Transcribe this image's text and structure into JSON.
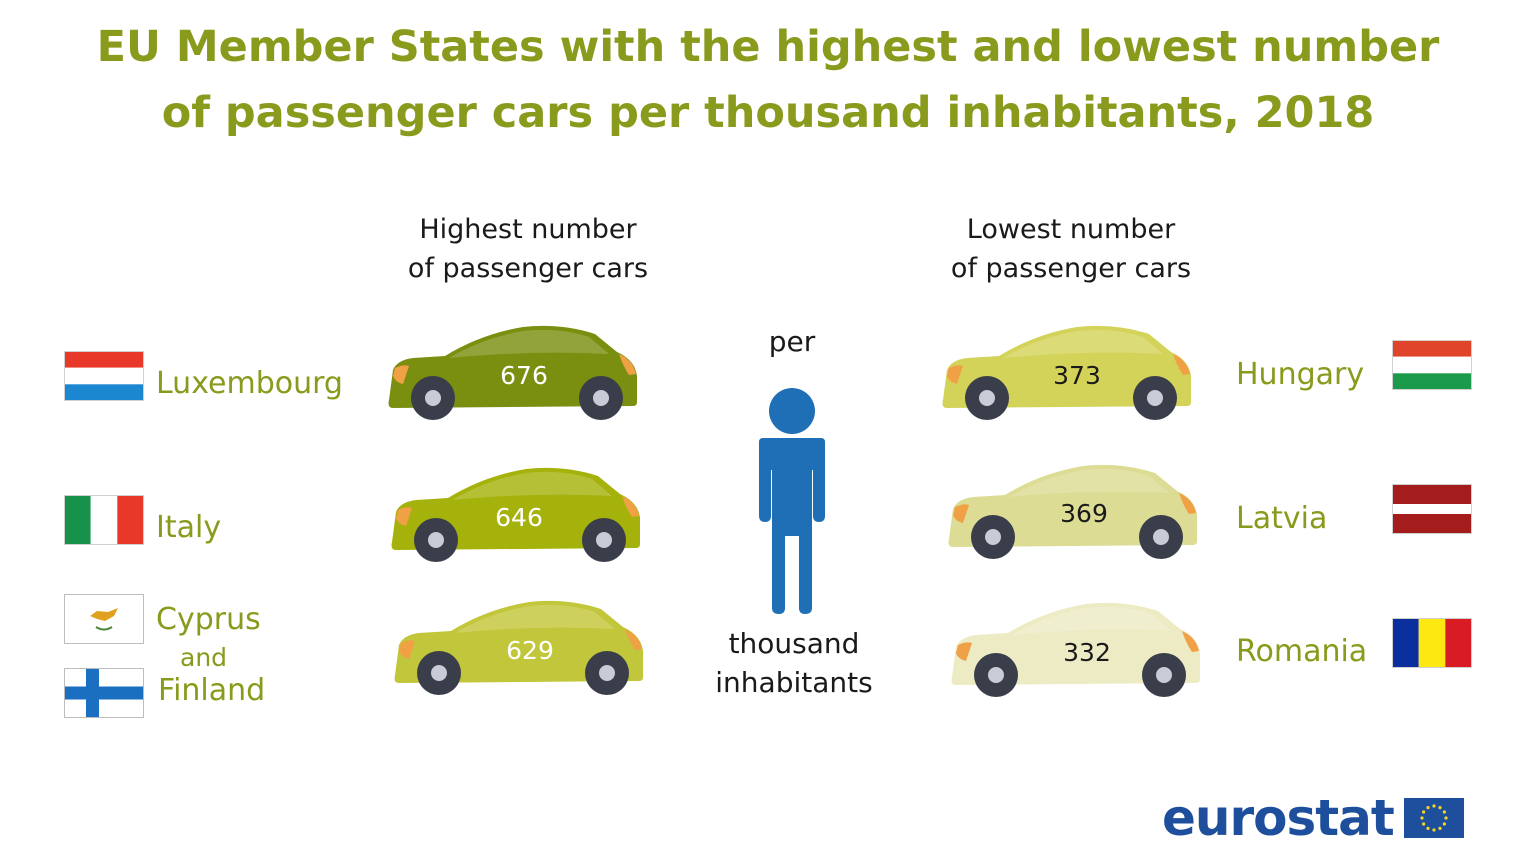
{
  "title": {
    "line1": "EU Member States with the highest and lowest number",
    "line2": "of passenger cars per thousand inhabitants, 2018"
  },
  "highest_header": {
    "line1": "Highest number",
    "line2": "of passenger cars"
  },
  "lowest_header": {
    "line1": "Lowest number",
    "line2": "of passenger cars"
  },
  "center": {
    "per": "per",
    "thousand": "thousand",
    "inhabitants": "inhabitants"
  },
  "highest": [
    {
      "label": "Luxembourg",
      "value": "676",
      "color": "#7a8f10"
    },
    {
      "label": "Italy",
      "value": "646",
      "color": "#a6b20c"
    },
    {
      "label_line1": "Cyprus",
      "label_and": "and",
      "label_line2": "Finland",
      "value": "629",
      "color": "#c2c63a"
    }
  ],
  "lowest": [
    {
      "label": "Hungary",
      "value": "373",
      "color": "#d3d35a"
    },
    {
      "label": "Latvia",
      "value": "369",
      "color": "#dcdc94"
    },
    {
      "label": "Romania",
      "value": "332",
      "color": "#ecebc4"
    }
  ],
  "chart_data": {
    "type": "bar",
    "title": "EU Member States with the highest and lowest number of passenger cars per thousand inhabitants, 2018",
    "categories": [
      "Luxembourg",
      "Italy",
      "Cyprus and Finland",
      "Hungary",
      "Latvia",
      "Romania"
    ],
    "series": [
      {
        "name": "Highest number of passenger cars",
        "values": [
          676,
          646,
          629,
          null,
          null,
          null
        ]
      },
      {
        "name": "Lowest number of passenger cars",
        "values": [
          null,
          null,
          null,
          373,
          369,
          332
        ]
      }
    ],
    "ylabel": "per thousand inhabitants"
  },
  "logo": {
    "text": "eurostat"
  },
  "colors": {
    "title": "#8a9a1c",
    "person": "#1e6fb5",
    "brand": "#1e4f9c",
    "wheel": "#3a3d4a",
    "light": "#f0a146"
  },
  "icons": {
    "person": "person-icon",
    "car": "car-icon",
    "eu_flag": "eu-flag-icon"
  }
}
